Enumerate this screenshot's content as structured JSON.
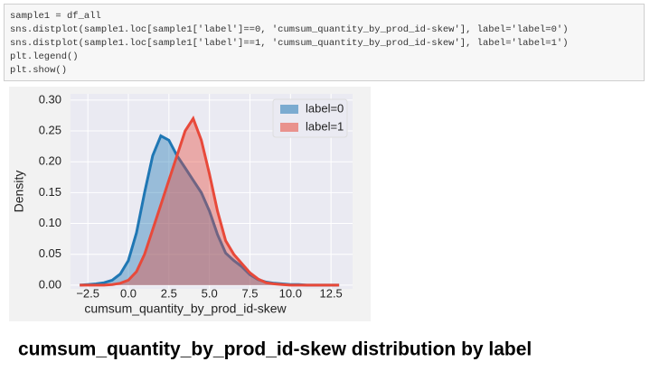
{
  "code": {
    "lines": [
      "sample1 = df_all",
      "sns.distplot(sample1.loc[sample1['label']==0, 'cumsum_quantity_by_prod_id-skew'], label='label=0')",
      "sns.distplot(sample1.loc[sample1['label']==1, 'cumsum_quantity_by_prod_id-skew'], label='label=1')",
      "plt.legend()",
      "plt.show()"
    ]
  },
  "chart_data": {
    "type": "line",
    "xlabel": "cumsum_quantity_by_prod_id-skew",
    "ylabel": "Density",
    "x": [
      -3,
      -2.5,
      -2,
      -1.5,
      -1,
      -0.5,
      0,
      0.5,
      1,
      1.5,
      2,
      2.5,
      3,
      3.5,
      4,
      4.5,
      5,
      5.5,
      6,
      6.5,
      7,
      7.5,
      8,
      8.5,
      9,
      9.5,
      10,
      10.5,
      11,
      11.5,
      12,
      12.5,
      13
    ],
    "series": [
      {
        "name": "label=0",
        "color": "#1f77b4",
        "values": [
          0,
          0.001,
          0.002,
          0.004,
          0.008,
          0.018,
          0.04,
          0.085,
          0.15,
          0.21,
          0.242,
          0.235,
          0.21,
          0.19,
          0.17,
          0.15,
          0.12,
          0.082,
          0.052,
          0.04,
          0.03,
          0.017,
          0.009,
          0.005,
          0.003,
          0.002,
          0.001,
          0.001,
          0,
          0,
          0,
          0,
          0
        ]
      },
      {
        "name": "label=1",
        "color": "#e8493a",
        "values": [
          0,
          0,
          0,
          0,
          0.001,
          0.003,
          0.008,
          0.022,
          0.05,
          0.09,
          0.13,
          0.17,
          0.21,
          0.25,
          0.27,
          0.235,
          0.18,
          0.12,
          0.072,
          0.05,
          0.035,
          0.02,
          0.01,
          0.004,
          0.002,
          0.001,
          0,
          0,
          0,
          0,
          0,
          0,
          0
        ]
      }
    ],
    "xlim": [
      -3.57,
      13.83
    ],
    "ylim": [
      -0.006,
      0.31
    ],
    "xticks": [
      {
        "value": -2.5,
        "label": "−2.5"
      },
      {
        "value": 0,
        "label": "0.0"
      },
      2.5,
      {
        "value": 5,
        "label": "5.0"
      },
      7.5,
      {
        "value": 10,
        "label": "10.0"
      },
      12.5
    ],
    "yticks": [
      {
        "value": 0,
        "label": "0.00"
      },
      0.05,
      {
        "value": 0.1,
        "label": "0.10"
      },
      0.15,
      {
        "value": 0.2,
        "label": "0.20"
      },
      0.25,
      {
        "value": 0.3,
        "label": "0.30"
      }
    ],
    "grid": true,
    "legend": "upper right"
  },
  "caption": "cumsum_quantity_by_prod_id-skew distribution by label"
}
